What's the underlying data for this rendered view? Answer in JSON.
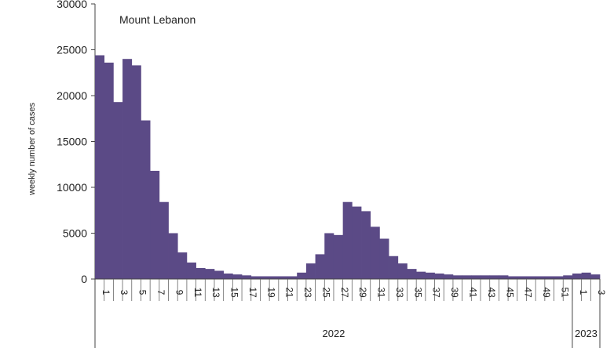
{
  "chart_data": {
    "type": "bar",
    "title": "Mount Lebanon",
    "ylabel": "weekly number of cases",
    "ylim": [
      0,
      30000
    ],
    "yticks": [
      0,
      5000,
      10000,
      15000,
      20000,
      25000,
      30000
    ],
    "bar_color": "#5b4a86",
    "grid": false,
    "groups": [
      {
        "label": "2022",
        "weeks": 52
      },
      {
        "label": "2023",
        "weeks": 3
      }
    ],
    "categories": [
      "1",
      "2",
      "3",
      "4",
      "5",
      "6",
      "7",
      "8",
      "9",
      "10",
      "11",
      "12",
      "13",
      "14",
      "15",
      "16",
      "17",
      "18",
      "19",
      "20",
      "21",
      "22",
      "23",
      "24",
      "25",
      "26",
      "27",
      "28",
      "29",
      "30",
      "31",
      "32",
      "33",
      "34",
      "35",
      "36",
      "37",
      "38",
      "39",
      "40",
      "41",
      "42",
      "43",
      "44",
      "45",
      "46",
      "47",
      "48",
      "49",
      "50",
      "51",
      "52",
      "1",
      "2",
      "3"
    ],
    "tick_labels": [
      "1",
      "",
      "3",
      "",
      "5",
      "",
      "7",
      "",
      "9",
      "",
      "11",
      "",
      "13",
      "",
      "15",
      "",
      "17",
      "",
      "19",
      "",
      "21",
      "",
      "23",
      "",
      "25",
      "",
      "27",
      "",
      "29",
      "",
      "31",
      "",
      "33",
      "",
      "35",
      "",
      "37",
      "",
      "39",
      "",
      "41",
      "",
      "43",
      "",
      "45",
      "",
      "47",
      "",
      "49",
      "",
      "51",
      "",
      "1",
      "",
      "3"
    ],
    "values": [
      24400,
      23600,
      19300,
      24000,
      23300,
      17300,
      11800,
      8400,
      5000,
      2900,
      1800,
      1200,
      1100,
      900,
      600,
      500,
      400,
      300,
      300,
      300,
      300,
      300,
      700,
      1700,
      2700,
      5000,
      4800,
      8400,
      7900,
      7400,
      5700,
      4400,
      2500,
      1700,
      1100,
      800,
      700,
      600,
      500,
      400,
      400,
      400,
      400,
      400,
      400,
      300,
      300,
      300,
      300,
      300,
      300,
      400,
      600,
      700,
      500
    ]
  }
}
